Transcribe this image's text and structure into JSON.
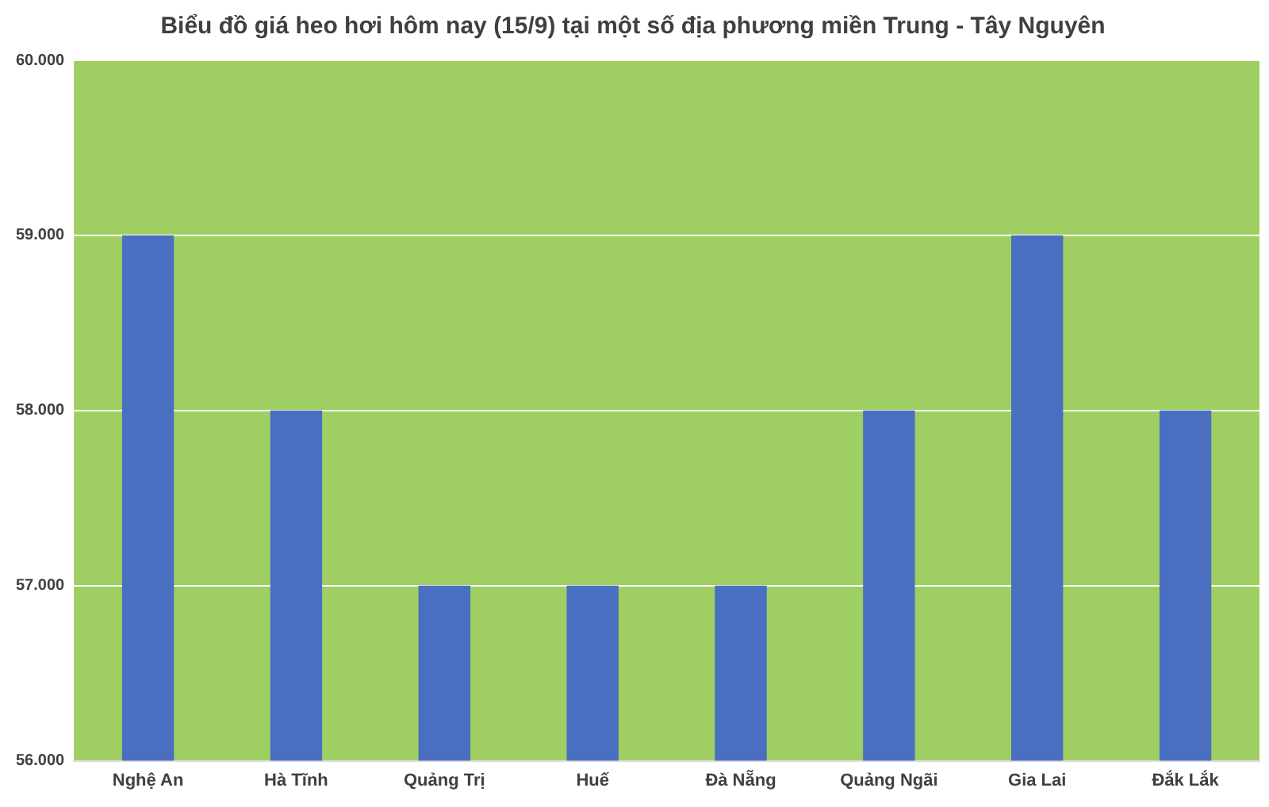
{
  "chart_data": {
    "type": "bar",
    "title": "Biểu đồ giá heo hơi hôm nay (15/9) tại một số địa phương miền Trung - Tây Nguyên",
    "categories": [
      "Nghệ An",
      "Hà Tĩnh",
      "Quảng Trị",
      "Huế",
      "Đà Nẵng",
      "Quảng Ngãi",
      "Gia Lai",
      "Đắk Lắk"
    ],
    "values": [
      59000,
      58000,
      57000,
      57000,
      57000,
      58000,
      59000,
      58000
    ],
    "color": "#4a6fc1",
    "ylim": [
      56000,
      60000
    ],
    "yticks": [
      {
        "value": 56000,
        "label": "56.000"
      },
      {
        "value": 57000,
        "label": "57.000"
      },
      {
        "value": 58000,
        "label": "58.000"
      },
      {
        "value": 59000,
        "label": "59.000"
      },
      {
        "value": 60000,
        "label": "60.000"
      }
    ],
    "grid": "y"
  }
}
